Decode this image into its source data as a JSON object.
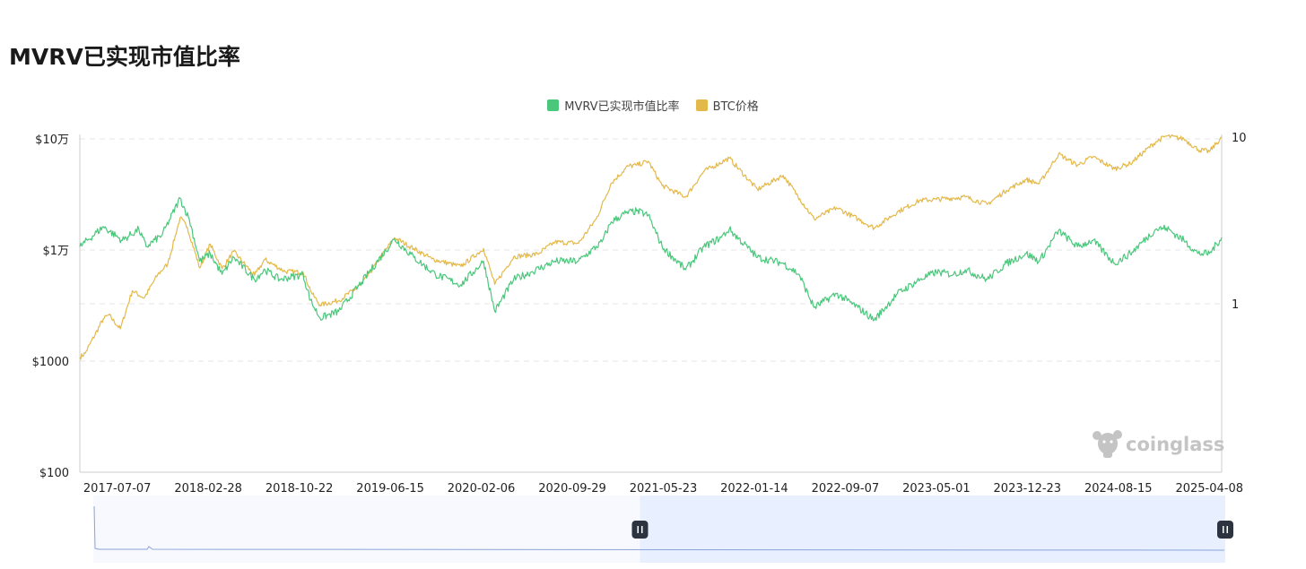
{
  "title": "MVRV已实现市值比率",
  "colors": {
    "mvrv": "#4bc77c",
    "btc": "#e3b94a",
    "grid": "#e6e6e6",
    "axis": "#cccccc",
    "zoom_fill": "#e8efff",
    "zoom_line": "#8aa4d8",
    "handle": "#2d3440",
    "watermark": "#c4c4c4"
  },
  "watermark": "coinglass",
  "chart_data": {
    "type": "line",
    "title": "MVRV已实现市值比率",
    "legend": [
      "MVRV已实现市值比率",
      "BTC价格"
    ],
    "legend_position": "top-center",
    "grid": true,
    "y_left": {
      "scale": "log",
      "range": [
        100,
        100000
      ],
      "ticks": [
        100,
        1000,
        10000,
        100000
      ],
      "tick_labels": [
        "$100",
        "$1000",
        "$1万",
        "$10万"
      ]
    },
    "y_right": {
      "scale": "log",
      "ticks": [
        1,
        10
      ],
      "tick_labels": [
        "1",
        "10"
      ]
    },
    "x_ticks": [
      "2017-07-07",
      "2018-02-28",
      "2018-10-22",
      "2019-06-15",
      "2020-02-06",
      "2020-09-29",
      "2021-05-23",
      "2022-01-14",
      "2022-09-07",
      "2023-05-01",
      "2023-12-23",
      "2024-08-15",
      "2025-04-08"
    ],
    "x_range": [
      "2017-04-01",
      "2025-05-10"
    ],
    "series": [
      {
        "name": "MVRV已实现市值比率",
        "axis": "right",
        "points": [
          [
            "2017-04-01",
            2.2
          ],
          [
            "2017-06-01",
            2.9
          ],
          [
            "2017-07-20",
            2.4
          ],
          [
            "2017-09-01",
            2.8
          ],
          [
            "2017-09-20",
            2.2
          ],
          [
            "2017-11-01",
            2.6
          ],
          [
            "2017-12-17",
            4.3
          ],
          [
            "2018-01-10",
            3.2
          ],
          [
            "2018-02-06",
            1.8
          ],
          [
            "2018-03-05",
            2.0
          ],
          [
            "2018-04-05",
            1.5
          ],
          [
            "2018-05-05",
            1.9
          ],
          [
            "2018-06-28",
            1.4
          ],
          [
            "2018-07-25",
            1.6
          ],
          [
            "2018-09-01",
            1.4
          ],
          [
            "2018-11-01",
            1.5
          ],
          [
            "2018-11-20",
            1.05
          ],
          [
            "2018-12-15",
            0.82
          ],
          [
            "2019-02-01",
            0.9
          ],
          [
            "2019-04-02",
            1.35
          ],
          [
            "2019-06-26",
            2.45
          ],
          [
            "2019-08-15",
            1.9
          ],
          [
            "2019-10-10",
            1.5
          ],
          [
            "2019-12-15",
            1.3
          ],
          [
            "2020-02-12",
            1.8
          ],
          [
            "2020-03-12",
            0.9
          ],
          [
            "2020-04-30",
            1.4
          ],
          [
            "2020-06-15",
            1.55
          ],
          [
            "2020-08-15",
            1.8
          ],
          [
            "2020-10-15",
            1.8
          ],
          [
            "2020-12-15",
            2.35
          ],
          [
            "2021-01-08",
            3.1
          ],
          [
            "2021-02-15",
            3.5
          ],
          [
            "2021-03-15",
            3.6
          ],
          [
            "2021-04-14",
            3.4
          ],
          [
            "2021-05-20",
            2.2
          ],
          [
            "2021-07-20",
            1.6
          ],
          [
            "2021-09-05",
            2.2
          ],
          [
            "2021-10-20",
            2.5
          ],
          [
            "2021-11-10",
            2.8
          ],
          [
            "2022-01-22",
            1.9
          ],
          [
            "2022-03-30",
            1.75
          ],
          [
            "2022-05-10",
            1.5
          ],
          [
            "2022-06-18",
            0.95
          ],
          [
            "2022-08-15",
            1.15
          ],
          [
            "2022-10-10",
            0.95
          ],
          [
            "2022-11-21",
            0.8
          ],
          [
            "2023-01-20",
            1.15
          ],
          [
            "2023-03-20",
            1.4
          ],
          [
            "2023-05-01",
            1.55
          ],
          [
            "2023-06-15",
            1.5
          ],
          [
            "2023-07-15",
            1.6
          ],
          [
            "2023-09-10",
            1.4
          ],
          [
            "2023-10-30",
            1.75
          ],
          [
            "2023-12-20",
            2.0
          ],
          [
            "2024-01-23",
            1.8
          ],
          [
            "2024-03-13",
            2.75
          ],
          [
            "2024-05-01",
            2.2
          ],
          [
            "2024-06-10",
            2.4
          ],
          [
            "2024-08-05",
            1.75
          ],
          [
            "2024-09-15",
            2.0
          ],
          [
            "2024-11-20",
            2.8
          ],
          [
            "2024-12-17",
            2.85
          ],
          [
            "2025-02-01",
            2.4
          ],
          [
            "2025-03-10",
            2.0
          ],
          [
            "2025-04-08",
            2.0
          ],
          [
            "2025-05-10",
            2.5
          ]
        ]
      },
      {
        "name": "BTC价格",
        "axis": "left",
        "points": [
          [
            "2017-04-01",
            1080
          ],
          [
            "2017-04-15",
            1180
          ],
          [
            "2017-06-01",
            2400
          ],
          [
            "2017-06-15",
            2600
          ],
          [
            "2017-07-15",
            1950
          ],
          [
            "2017-08-15",
            4300
          ],
          [
            "2017-09-15",
            3700
          ],
          [
            "2017-10-20",
            6000
          ],
          [
            "2017-11-15",
            7500
          ],
          [
            "2017-12-17",
            19500
          ],
          [
            "2018-01-05",
            16000
          ],
          [
            "2018-02-06",
            6900
          ],
          [
            "2018-03-05",
            11300
          ],
          [
            "2018-04-05",
            6800
          ],
          [
            "2018-05-05",
            9700
          ],
          [
            "2018-06-28",
            5900
          ],
          [
            "2018-07-25",
            8200
          ],
          [
            "2018-09-15",
            6400
          ],
          [
            "2018-11-01",
            6300
          ],
          [
            "2018-11-25",
            4000
          ],
          [
            "2018-12-15",
            3200
          ],
          [
            "2019-02-01",
            3500
          ],
          [
            "2019-04-02",
            4900
          ],
          [
            "2019-05-15",
            8000
          ],
          [
            "2019-06-26",
            12900
          ],
          [
            "2019-08-15",
            10300
          ],
          [
            "2019-10-01",
            8300
          ],
          [
            "2019-12-15",
            7100
          ],
          [
            "2020-02-12",
            10300
          ],
          [
            "2020-03-12",
            4900
          ],
          [
            "2020-04-30",
            8700
          ],
          [
            "2020-07-01",
            9200
          ],
          [
            "2020-08-15",
            11800
          ],
          [
            "2020-10-15",
            11500
          ],
          [
            "2020-11-30",
            19000
          ],
          [
            "2021-01-08",
            40000
          ],
          [
            "2021-02-21",
            57000
          ],
          [
            "2021-03-15",
            58000
          ],
          [
            "2021-04-14",
            63000
          ],
          [
            "2021-05-20",
            38000
          ],
          [
            "2021-07-20",
            30000
          ],
          [
            "2021-09-05",
            51000
          ],
          [
            "2021-11-10",
            67000
          ],
          [
            "2022-01-22",
            35000
          ],
          [
            "2022-03-30",
            47000
          ],
          [
            "2022-05-12",
            29000
          ],
          [
            "2022-06-18",
            19000
          ],
          [
            "2022-08-15",
            24000
          ],
          [
            "2022-10-10",
            19000
          ],
          [
            "2022-11-21",
            15800
          ],
          [
            "2023-01-20",
            22000
          ],
          [
            "2023-03-20",
            28000
          ],
          [
            "2023-05-01",
            28500
          ],
          [
            "2023-07-15",
            30000
          ],
          [
            "2023-09-10",
            25800
          ],
          [
            "2023-10-30",
            34500
          ],
          [
            "2023-12-20",
            43000
          ],
          [
            "2024-01-23",
            39500
          ],
          [
            "2024-03-13",
            73000
          ],
          [
            "2024-05-01",
            58000
          ],
          [
            "2024-06-10",
            69000
          ],
          [
            "2024-08-05",
            54000
          ],
          [
            "2024-09-15",
            60000
          ],
          [
            "2024-11-20",
            94000
          ],
          [
            "2024-12-17",
            106000
          ],
          [
            "2025-02-01",
            100000
          ],
          [
            "2025-03-10",
            80000
          ],
          [
            "2025-04-08",
            77000
          ],
          [
            "2025-05-10",
            103000
          ]
        ]
      }
    ]
  },
  "zoom": {
    "range_start": "2021-03-01",
    "range_end": "2025-05-10",
    "start_handle_icon": "pause-handle-icon",
    "end_handle_icon": "pause-handle-icon"
  }
}
